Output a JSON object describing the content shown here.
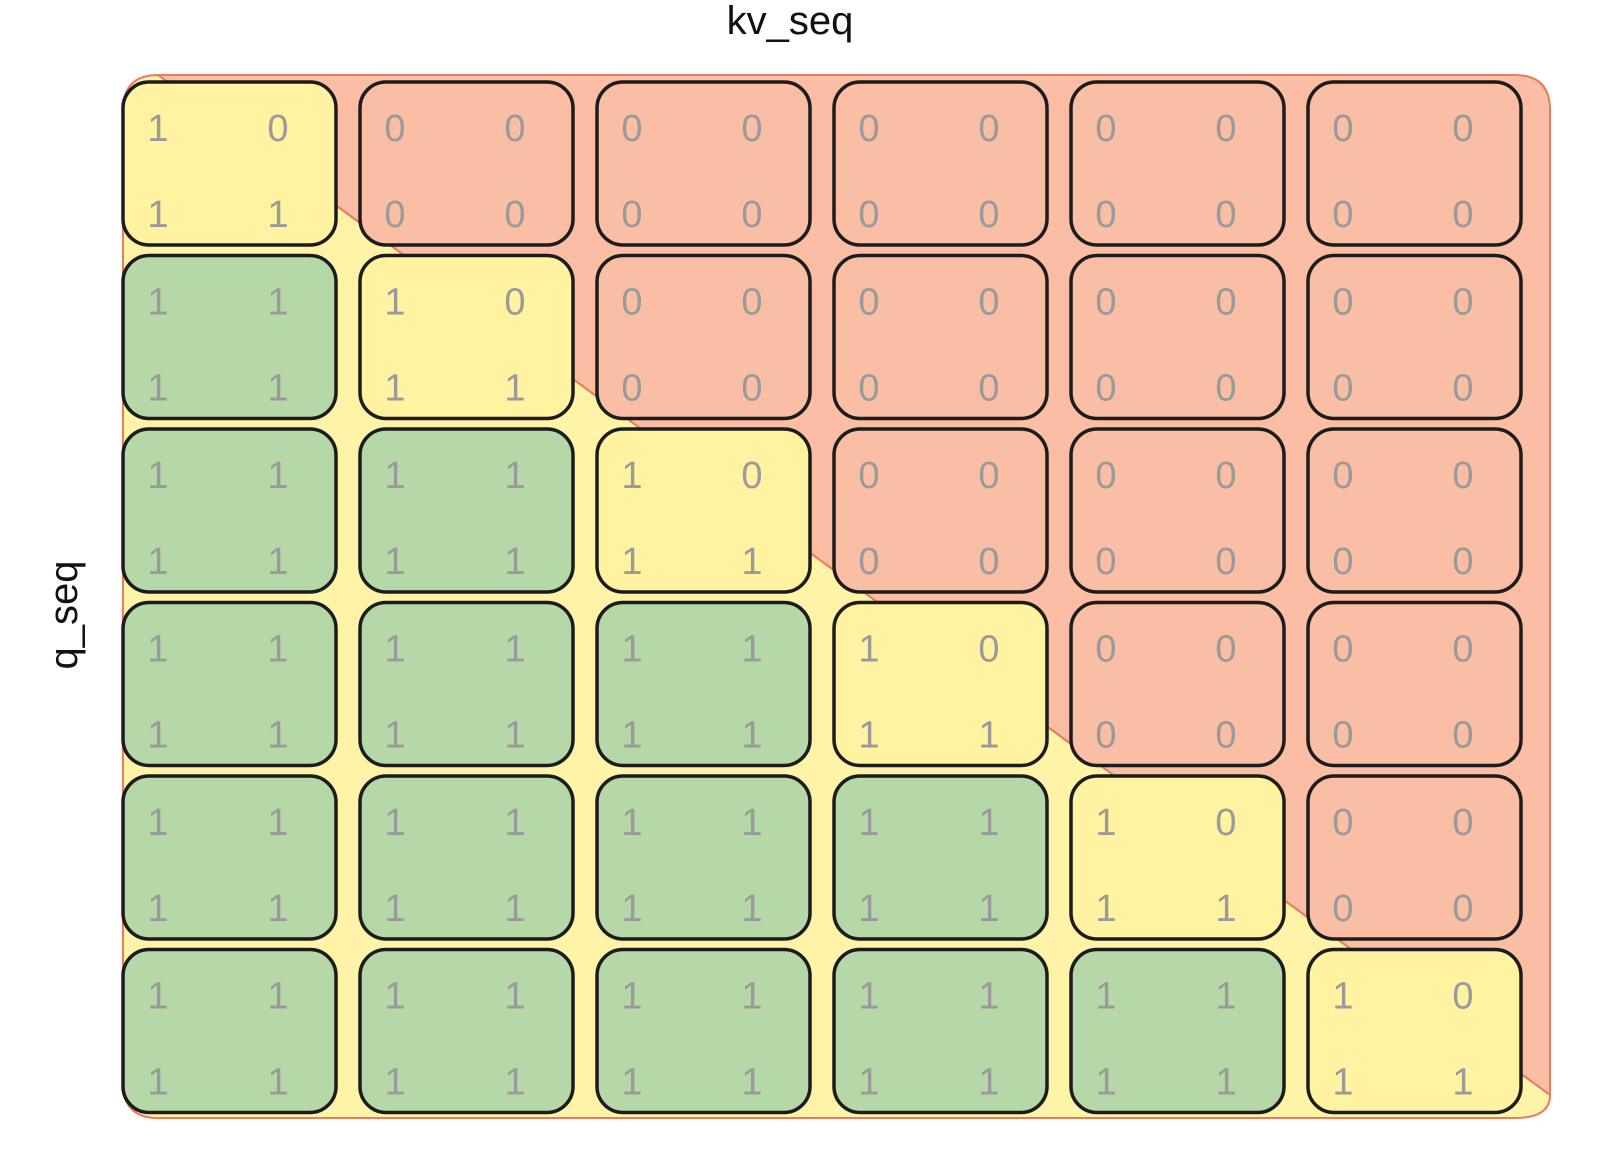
{
  "axes": {
    "x_label": "kv_seq",
    "y_label": "q_seq"
  },
  "colors": {
    "masked_region": "#fbbda3",
    "diagonal_region": "#fff3a8",
    "region_border": "#ea7b60",
    "full_block": "#b6d7a8",
    "diagonal_block": "#fff2a1",
    "masked_block": "#f9bea4",
    "block_border": "#1c1c1c",
    "value_text": "#9a9a9a"
  },
  "legend_states": {
    "full": "green",
    "diagonal": "yellow",
    "masked": "red"
  },
  "grid": {
    "rows": [
      {
        "blocks": [
          {
            "state": "diagonal",
            "values": [
              "1",
              "0",
              "1",
              "1"
            ]
          },
          {
            "state": "masked",
            "values": [
              "0",
              "0",
              "0",
              "0"
            ]
          },
          {
            "state": "masked",
            "values": [
              "0",
              "0",
              "0",
              "0"
            ]
          },
          {
            "state": "masked",
            "values": [
              "0",
              "0",
              "0",
              "0"
            ]
          },
          {
            "state": "masked",
            "values": [
              "0",
              "0",
              "0",
              "0"
            ]
          },
          {
            "state": "masked",
            "values": [
              "0",
              "0",
              "0",
              "0"
            ]
          }
        ]
      },
      {
        "blocks": [
          {
            "state": "full",
            "values": [
              "1",
              "1",
              "1",
              "1"
            ]
          },
          {
            "state": "diagonal",
            "values": [
              "1",
              "0",
              "1",
              "1"
            ]
          },
          {
            "state": "masked",
            "values": [
              "0",
              "0",
              "0",
              "0"
            ]
          },
          {
            "state": "masked",
            "values": [
              "0",
              "0",
              "0",
              "0"
            ]
          },
          {
            "state": "masked",
            "values": [
              "0",
              "0",
              "0",
              "0"
            ]
          },
          {
            "state": "masked",
            "values": [
              "0",
              "0",
              "0",
              "0"
            ]
          }
        ]
      },
      {
        "blocks": [
          {
            "state": "full",
            "values": [
              "1",
              "1",
              "1",
              "1"
            ]
          },
          {
            "state": "full",
            "values": [
              "1",
              "1",
              "1",
              "1"
            ]
          },
          {
            "state": "diagonal",
            "values": [
              "1",
              "0",
              "1",
              "1"
            ]
          },
          {
            "state": "masked",
            "values": [
              "0",
              "0",
              "0",
              "0"
            ]
          },
          {
            "state": "masked",
            "values": [
              "0",
              "0",
              "0",
              "0"
            ]
          },
          {
            "state": "masked",
            "values": [
              "0",
              "0",
              "0",
              "0"
            ]
          }
        ]
      },
      {
        "blocks": [
          {
            "state": "full",
            "values": [
              "1",
              "1",
              "1",
              "1"
            ]
          },
          {
            "state": "full",
            "values": [
              "1",
              "1",
              "1",
              "1"
            ]
          },
          {
            "state": "full",
            "values": [
              "1",
              "1",
              "1",
              "1"
            ]
          },
          {
            "state": "diagonal",
            "values": [
              "1",
              "0",
              "1",
              "1"
            ]
          },
          {
            "state": "masked",
            "values": [
              "0",
              "0",
              "0",
              "0"
            ]
          },
          {
            "state": "masked",
            "values": [
              "0",
              "0",
              "0",
              "0"
            ]
          }
        ]
      },
      {
        "blocks": [
          {
            "state": "full",
            "values": [
              "1",
              "1",
              "1",
              "1"
            ]
          },
          {
            "state": "full",
            "values": [
              "1",
              "1",
              "1",
              "1"
            ]
          },
          {
            "state": "full",
            "values": [
              "1",
              "1",
              "1",
              "1"
            ]
          },
          {
            "state": "full",
            "values": [
              "1",
              "1",
              "1",
              "1"
            ]
          },
          {
            "state": "diagonal",
            "values": [
              "1",
              "0",
              "1",
              "1"
            ]
          },
          {
            "state": "masked",
            "values": [
              "0",
              "0",
              "0",
              "0"
            ]
          }
        ]
      },
      {
        "blocks": [
          {
            "state": "full",
            "values": [
              "1",
              "1",
              "1",
              "1"
            ]
          },
          {
            "state": "full",
            "values": [
              "1",
              "1",
              "1",
              "1"
            ]
          },
          {
            "state": "full",
            "values": [
              "1",
              "1",
              "1",
              "1"
            ]
          },
          {
            "state": "full",
            "values": [
              "1",
              "1",
              "1",
              "1"
            ]
          },
          {
            "state": "full",
            "values": [
              "1",
              "1",
              "1",
              "1"
            ]
          },
          {
            "state": "diagonal",
            "values": [
              "1",
              "0",
              "1",
              "1"
            ]
          }
        ]
      }
    ]
  }
}
